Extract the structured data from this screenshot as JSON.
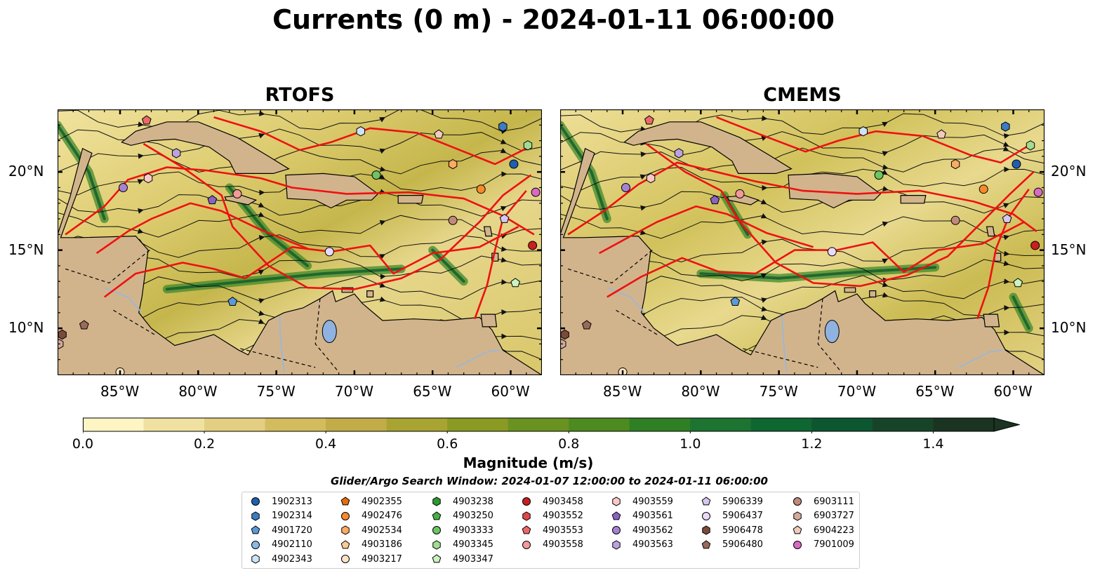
{
  "title": "Currents (0 m) - 2024-01-11 06:00:00",
  "panels": [
    {
      "name": "RTOFS"
    },
    {
      "name": "CMEMS"
    }
  ],
  "axes": {
    "lon_ticks": [
      "85°W",
      "80°W",
      "75°W",
      "70°W",
      "65°W",
      "60°W"
    ],
    "lat_ticks": [
      "20°N",
      "15°N",
      "10°N"
    ],
    "lon_range": [
      -89,
      -58
    ],
    "lat_range": [
      7,
      24
    ]
  },
  "colors": {
    "land": "#d2b48c",
    "lake": "#8fb2e0",
    "track": "#ee1111",
    "contour": "#555555"
  },
  "colorbar": {
    "label": "Magnitude (m/s)",
    "ticks": [
      "0.0",
      "0.2",
      "0.4",
      "0.6",
      "0.8",
      "1.0",
      "1.2",
      "1.4"
    ],
    "min": 0,
    "max": 1.5,
    "extend": "max",
    "colors": [
      "#fdf5c4",
      "#f0e1a0",
      "#e3ce82",
      "#d3bc5e",
      "#c2ac48",
      "#a8a432",
      "#8a9a22",
      "#6a9220",
      "#4d8a1f",
      "#2f7f24",
      "#1d7330",
      "#0e6631",
      "#0c5630",
      "#174428",
      "#1a3421"
    ]
  },
  "legend": {
    "subtitle": "Glider/Argo Search Window: 2024-01-07 12:00:00 to 2024-01-11 06:00:00",
    "columns": [
      [
        {
          "label": "1902313",
          "marker": "circle",
          "color": "#1f5fae"
        },
        {
          "label": "1902314",
          "marker": "hexagon",
          "color": "#3a7dc2"
        },
        {
          "label": "4901720",
          "marker": "pentagon",
          "color": "#5a9ad8"
        },
        {
          "label": "4902110",
          "marker": "circle",
          "color": "#8ab9e8"
        },
        {
          "label": "4902343",
          "marker": "hexagon",
          "color": "#cfe3f6"
        }
      ],
      [
        {
          "label": "4902355",
          "marker": "pentagon",
          "color": "#e86b0c"
        },
        {
          "label": "4902476",
          "marker": "circle",
          "color": "#f78a2c"
        },
        {
          "label": "4902534",
          "marker": "hexagon",
          "color": "#fbab62"
        },
        {
          "label": "4903186",
          "marker": "pentagon",
          "color": "#fdca95"
        },
        {
          "label": "4903217",
          "marker": "circle",
          "color": "#fde3c6"
        }
      ],
      [
        {
          "label": "4903238",
          "marker": "hexagon",
          "color": "#2a9a2f"
        },
        {
          "label": "4903250",
          "marker": "pentagon",
          "color": "#45b044"
        },
        {
          "label": "4903333",
          "marker": "circle",
          "color": "#6cc563"
        },
        {
          "label": "4903345",
          "marker": "hexagon",
          "color": "#a0dc91"
        },
        {
          "label": "4903347",
          "marker": "pentagon",
          "color": "#ccf2c0"
        }
      ],
      [
        {
          "label": "4903458",
          "marker": "circle",
          "color": "#c91f1f"
        },
        {
          "label": "4903552",
          "marker": "hexagon",
          "color": "#dd4848"
        },
        {
          "label": "4903553",
          "marker": "pentagon",
          "color": "#ea6a6a"
        },
        {
          "label": "4903558",
          "marker": "circle",
          "color": "#f29a9a"
        }
      ],
      [
        {
          "label": "4903559",
          "marker": "hexagon",
          "color": "#fbc8c8"
        },
        {
          "label": "4903561",
          "marker": "pentagon",
          "color": "#8c62c2"
        },
        {
          "label": "4903562",
          "marker": "circle",
          "color": "#a582d2"
        },
        {
          "label": "4903563",
          "marker": "hexagon",
          "color": "#bca2df"
        }
      ],
      [
        {
          "label": "5906339",
          "marker": "pentagon",
          "color": "#d6c7f0"
        },
        {
          "label": "5906437",
          "marker": "circle",
          "color": "#ead9f8"
        },
        {
          "label": "5906478",
          "marker": "hexagon",
          "color": "#7a4a3a"
        },
        {
          "label": "5906480",
          "marker": "pentagon",
          "color": "#9a6a5a"
        }
      ],
      [
        {
          "label": "6903111",
          "marker": "circle",
          "color": "#c08a7a"
        },
        {
          "label": "6903727",
          "marker": "hexagon",
          "color": "#d6aa9a"
        },
        {
          "label": "6904223",
          "marker": "pentagon",
          "color": "#f1cbbd"
        },
        {
          "label": "7901009",
          "marker": "circle",
          "color": "#d86ac4"
        }
      ]
    ]
  }
}
